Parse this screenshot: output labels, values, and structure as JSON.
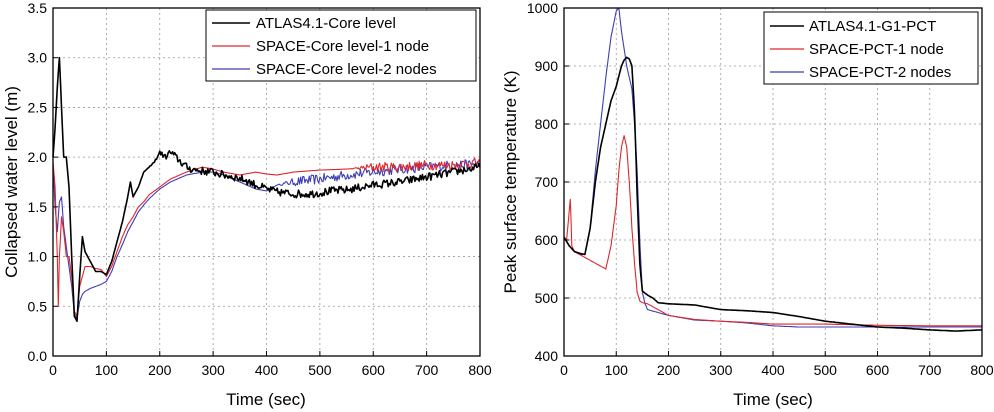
{
  "chart_data": [
    {
      "type": "line",
      "xlabel": "Time (sec)",
      "ylabel": "Collapsed water level (m)",
      "xlim": [
        0,
        800
      ],
      "ylim": [
        0.0,
        3.5
      ],
      "xticks": [
        0,
        100,
        200,
        300,
        400,
        500,
        600,
        700,
        800
      ],
      "yticks": [
        0.0,
        0.5,
        1.0,
        1.5,
        2.0,
        2.5,
        3.0,
        3.5
      ],
      "ytick_labels": [
        "0.0",
        "0.5",
        "1.0",
        "1.5",
        "2.0",
        "2.5",
        "3.0",
        "3.5"
      ],
      "grid": true,
      "legend_position": "top-right",
      "series": [
        {
          "name": "ATLAS4.1-Core level",
          "color": "#000000",
          "noise": 0.04,
          "noise_start": 180,
          "x": [
            0,
            4,
            8,
            12,
            16,
            20,
            25,
            30,
            35,
            40,
            45,
            50,
            55,
            60,
            70,
            80,
            90,
            100,
            110,
            120,
            130,
            140,
            145,
            150,
            160,
            170,
            180,
            190,
            200,
            210,
            220,
            230,
            240,
            250,
            260,
            280,
            300,
            320,
            340,
            360,
            380,
            400,
            420,
            450,
            480,
            500,
            520,
            550,
            580,
            600,
            650,
            700,
            750,
            800
          ],
          "y": [
            2.0,
            2.3,
            2.7,
            3.0,
            2.5,
            2.0,
            2.0,
            1.7,
            1.0,
            0.4,
            0.35,
            0.8,
            1.2,
            1.05,
            0.95,
            0.85,
            0.85,
            0.82,
            0.95,
            1.15,
            1.35,
            1.6,
            1.75,
            1.6,
            1.7,
            1.85,
            1.9,
            1.95,
            2.05,
            2.0,
            2.05,
            2.0,
            1.95,
            1.9,
            1.88,
            1.86,
            1.85,
            1.82,
            1.8,
            1.77,
            1.72,
            1.68,
            1.65,
            1.63,
            1.63,
            1.64,
            1.66,
            1.67,
            1.7,
            1.72,
            1.75,
            1.8,
            1.85,
            1.9
          ]
        },
        {
          "name": "SPACE-Core level-1 node",
          "color": "#e0262d",
          "noise": 0.05,
          "noise_start": 560,
          "x": [
            0,
            4,
            8,
            10,
            12,
            16,
            20,
            25,
            30,
            35,
            40,
            45,
            50,
            60,
            70,
            80,
            90,
            100,
            110,
            120,
            130,
            140,
            150,
            160,
            170,
            180,
            200,
            220,
            250,
            280,
            300,
            320,
            350,
            380,
            400,
            420,
            450,
            500,
            550,
            600,
            650,
            700,
            750,
            800
          ],
          "y": [
            1.95,
            1.7,
            1.0,
            0.5,
            1.0,
            1.4,
            1.25,
            1.0,
            1.0,
            0.8,
            0.45,
            0.4,
            0.7,
            0.9,
            0.9,
            0.88,
            0.87,
            0.8,
            0.9,
            1.05,
            1.2,
            1.32,
            1.4,
            1.5,
            1.55,
            1.62,
            1.7,
            1.78,
            1.85,
            1.9,
            1.88,
            1.85,
            1.82,
            1.85,
            1.83,
            1.82,
            1.85,
            1.87,
            1.88,
            1.9,
            1.9,
            1.92,
            1.92,
            1.95
          ]
        },
        {
          "name": "SPACE-Core level-2 nodes",
          "color": "#3e3eb5",
          "noise": 0.05,
          "noise_start": 420,
          "x": [
            0,
            4,
            8,
            12,
            16,
            20,
            25,
            30,
            35,
            40,
            45,
            50,
            55,
            60,
            70,
            80,
            90,
            100,
            110,
            120,
            130,
            140,
            150,
            160,
            170,
            180,
            200,
            220,
            250,
            280,
            300,
            320,
            350,
            380,
            400,
            420,
            450,
            500,
            550,
            600,
            650,
            700,
            750,
            800
          ],
          "y": [
            1.9,
            1.5,
            1.25,
            1.55,
            1.6,
            1.3,
            1.1,
            0.9,
            0.7,
            0.42,
            0.38,
            0.55,
            0.62,
            0.65,
            0.68,
            0.7,
            0.72,
            0.75,
            0.85,
            1.0,
            1.12,
            1.25,
            1.35,
            1.45,
            1.52,
            1.58,
            1.68,
            1.75,
            1.82,
            1.85,
            1.85,
            1.82,
            1.75,
            1.68,
            1.66,
            1.72,
            1.75,
            1.78,
            1.82,
            1.85,
            1.88,
            1.9,
            1.92,
            1.93
          ]
        }
      ]
    },
    {
      "type": "line",
      "xlabel": "Time (sec)",
      "ylabel": "Peak surface temperature (K)",
      "xlim": [
        0,
        800
      ],
      "ylim": [
        400,
        1000
      ],
      "xticks": [
        0,
        100,
        200,
        300,
        400,
        500,
        600,
        700,
        800
      ],
      "yticks": [
        400,
        500,
        600,
        700,
        800,
        900,
        1000
      ],
      "ytick_labels": [
        "400",
        "500",
        "600",
        "700",
        "800",
        "900",
        "1000"
      ],
      "grid": true,
      "legend_position": "top-right",
      "series": [
        {
          "name": "ATLAS4.1-G1-PCT",
          "color": "#000000",
          "noise": 0,
          "noise_start": 800,
          "x": [
            0,
            10,
            20,
            30,
            40,
            50,
            60,
            70,
            80,
            90,
            100,
            110,
            115,
            120,
            125,
            130,
            135,
            140,
            145,
            150,
            160,
            170,
            180,
            200,
            250,
            300,
            350,
            400,
            450,
            500,
            550,
            600,
            650,
            700,
            750,
            800
          ],
          "y": [
            605,
            590,
            580,
            577,
            575,
            620,
            700,
            760,
            800,
            840,
            865,
            900,
            910,
            915,
            912,
            900,
            820,
            680,
            560,
            512,
            505,
            500,
            492,
            490,
            488,
            480,
            478,
            475,
            468,
            460,
            455,
            450,
            448,
            445,
            443,
            445
          ]
        },
        {
          "name": "SPACE-PCT-1 node",
          "color": "#e0262d",
          "noise": 0,
          "noise_start": 800,
          "x": [
            0,
            5,
            10,
            12,
            15,
            20,
            30,
            40,
            50,
            60,
            70,
            80,
            90,
            100,
            105,
            110,
            115,
            120,
            125,
            130,
            135,
            140,
            145,
            150,
            160,
            180,
            200,
            250,
            300,
            350,
            400,
            450,
            500,
            600,
            700,
            800
          ],
          "y": [
            605,
            600,
            650,
            670,
            590,
            580,
            575,
            570,
            565,
            560,
            555,
            550,
            590,
            660,
            720,
            760,
            780,
            760,
            700,
            620,
            560,
            510,
            495,
            492,
            490,
            480,
            470,
            463,
            460,
            458,
            455,
            455,
            455,
            453,
            452,
            452
          ]
        },
        {
          "name": "SPACE-PCT-2 nodes",
          "color": "#3e3eb5",
          "noise": 0,
          "noise_start": 800,
          "x": [
            0,
            10,
            20,
            30,
            40,
            50,
            60,
            70,
            80,
            90,
            100,
            105,
            110,
            115,
            120,
            125,
            130,
            135,
            140,
            145,
            150,
            155,
            160,
            180,
            200,
            250,
            300,
            350,
            400,
            450,
            500,
            600,
            700,
            800
          ],
          "y": [
            605,
            590,
            580,
            575,
            575,
            620,
            720,
            800,
            880,
            950,
            995,
            1000,
            960,
            930,
            900,
            880,
            860,
            800,
            720,
            600,
            510,
            490,
            480,
            475,
            470,
            462,
            460,
            457,
            452,
            450,
            450,
            450,
            450,
            450
          ]
        }
      ]
    }
  ]
}
